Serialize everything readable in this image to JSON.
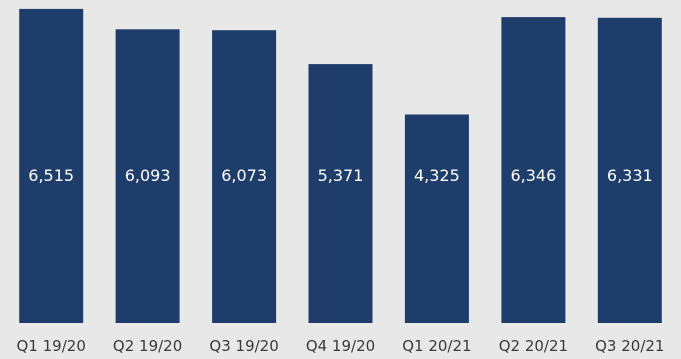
{
  "colors": {
    "background": "#e8e8e8",
    "bar": "#1e3d6b",
    "value_text": "#ffffff",
    "tick_text": "#3a3a3a"
  },
  "chart_data": {
    "type": "bar",
    "categories": [
      "Q1 19/20",
      "Q2 19/20",
      "Q3 19/20",
      "Q4 19/20",
      "Q1 20/21",
      "Q2 20/21",
      "Q3 20/21"
    ],
    "series": [
      {
        "values": [
          6515,
          6093,
          6073,
          5371,
          4325,
          6346,
          6331
        ],
        "labels": [
          "6,515",
          "6,093",
          "6,073",
          "5,371",
          "4,325",
          "6,346",
          "6,331"
        ]
      }
    ],
    "title": "",
    "xlabel": "",
    "ylabel": "",
    "ylim": [
      0,
      6700
    ],
    "grid": false,
    "legend": "none"
  }
}
